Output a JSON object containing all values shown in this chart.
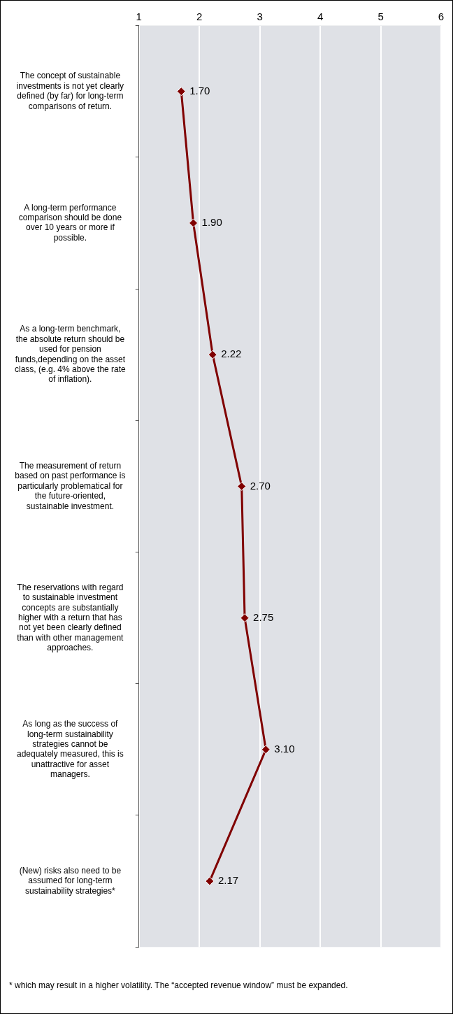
{
  "chart_data": {
    "type": "line",
    "orientation": "horizontal",
    "categories": [
      "The concept of sustainable investments is not yet clearly defined (by far) for long-term comparisons of return.",
      "A long-term performance comparison should be done over 10 years or more if possible.",
      "As a long-term benchmark, the absolute return should be used for pension funds,depending on the asset class, (e.g. 4% above the rate of inflation).",
      "The measurement of return based on past performance is particularly problematical for the future-oriented, sustainable investment.",
      "The reservations with regard to sustainable investment concepts are substantially higher with a return that has not yet been clearly defined than with other management approaches.",
      "As long as the success of long-term sustainability strategies cannot be adequately measured, this is unattractive for asset managers.",
      "(New) risks also need to be assumed for long-term sustainability strategies*"
    ],
    "series": [
      {
        "color": "#800000",
        "values": [
          1.7,
          1.9,
          2.22,
          2.7,
          2.75,
          3.1,
          2.17
        ],
        "value_labels": [
          "1.70",
          "1.90",
          "2.22",
          "2.70",
          "2.75",
          "3.10",
          "2.17"
        ]
      }
    ],
    "xlim": [
      1,
      6
    ],
    "xticks": [
      1,
      2,
      3,
      4,
      5,
      6
    ],
    "grid": "x",
    "legend": false,
    "marker": "diamond",
    "line_style": "solid",
    "annotations": [
      "* which may result in a higher volatility. The “accepted revenue window” must be expanded."
    ]
  }
}
